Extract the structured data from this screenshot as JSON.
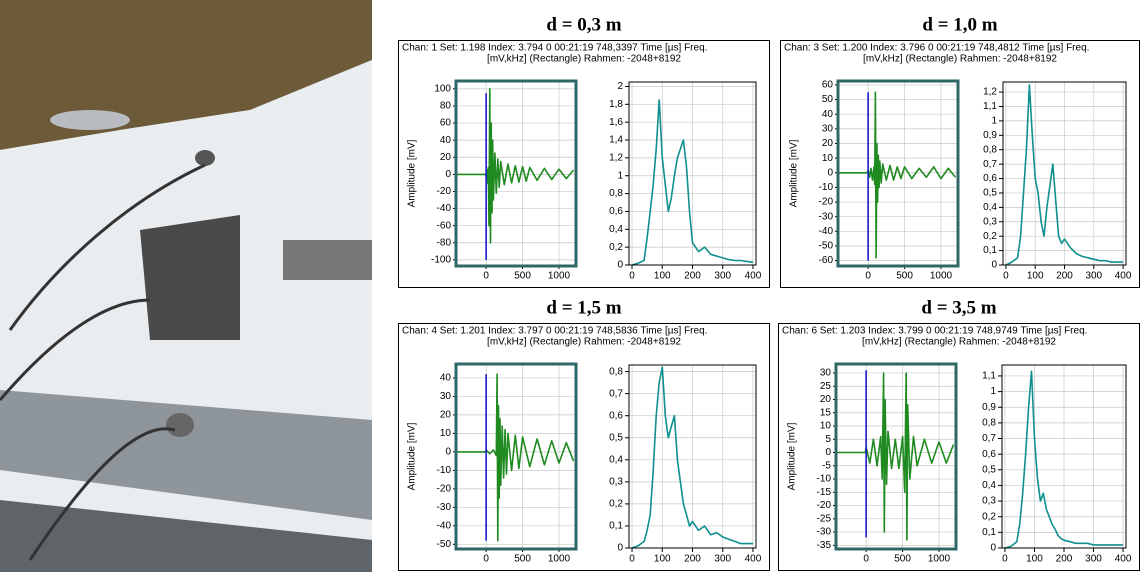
{
  "panels": [
    {
      "title": "d = 0,3 m",
      "info": "Chan: 1  Set: 1.198  Index: 3.794   0  00:21:19 748,3397   Time [µs] Freq.",
      "info2": "[mV,kHz] (Rectangle) Rahmen: -2048+8192"
    },
    {
      "title": "d = 1,0 m",
      "info": "Chan: 3  Set: 1.200  Index: 3.796   0  00:21:19 748,4812   Time [µs] Freq.",
      "info2": "[mV,kHz] (Rectangle) Rahmen: -2048+8192"
    },
    {
      "title": "d = 1,5 m",
      "info": "Chan: 4  Set: 1.201  Index: 3.797   0  00:21:19 748,5836   Time [µs] Freq.",
      "info2": "[mV,kHz] (Rectangle) Rahmen: -2048+8192"
    },
    {
      "title": "d = 3,5 m",
      "info": "Chan: 6  Set: 1.203  Index: 3.799   0  00:21:19 748,9749   Time [µs] Freq.",
      "info2": "[mV,kHz] (Rectangle) Rahmen: -2048+8192"
    }
  ],
  "chart_data": [
    {
      "type": "line",
      "ylabel": "Amplitude [mV]",
      "grid": true,
      "x": [
        -400,
        -10,
        0,
        10,
        20,
        30,
        40,
        50,
        60,
        70,
        80,
        90,
        100,
        120,
        140,
        160,
        180,
        200,
        250,
        300,
        350,
        400,
        450,
        500,
        550,
        600,
        700,
        800,
        900,
        1000,
        1100,
        1200
      ],
      "series": [
        {
          "color": "#1f8a1f",
          "values": [
            0,
            0,
            -2,
            5,
            -10,
            8,
            -60,
            100,
            -80,
            60,
            -45,
            40,
            -30,
            25,
            -22,
            18,
            -15,
            15,
            -12,
            12,
            -10,
            10,
            -9,
            9,
            -8,
            8,
            -7,
            7,
            -6,
            6,
            -5,
            5
          ]
        }
      ],
      "vlines": [
        {
          "x": 0,
          "y": [
            -100,
            95
          ],
          "color": "#1a1acc"
        }
      ],
      "xlim": [
        -400,
        1220
      ],
      "xticks": [
        0,
        500,
        1000
      ],
      "ylim": [
        -106,
        108
      ],
      "yticks": [
        -100,
        -80,
        -60,
        -40,
        -20,
        0,
        20,
        40,
        60,
        80,
        100
      ]
    },
    {
      "type": "line",
      "grid": true,
      "x": [
        0,
        20,
        40,
        50,
        60,
        70,
        80,
        90,
        100,
        110,
        120,
        130,
        140,
        150,
        160,
        170,
        180,
        190,
        200,
        220,
        240,
        260,
        280,
        300,
        320,
        340,
        360,
        380,
        400
      ],
      "series": [
        {
          "color": "#0f8f8f",
          "values": [
            0,
            0.02,
            0.05,
            0.3,
            0.6,
            0.9,
            1.3,
            1.85,
            1.2,
            0.9,
            0.6,
            0.75,
            1.0,
            1.2,
            1.3,
            1.4,
            1.1,
            0.6,
            0.25,
            0.15,
            0.2,
            0.12,
            0.1,
            0.08,
            0.06,
            0.05,
            0.05,
            0.04,
            0.03
          ]
        }
      ],
      "xlim": [
        -10,
        410
      ],
      "xticks": [
        0,
        100,
        200,
        300,
        400
      ],
      "ylim": [
        0,
        2.05
      ],
      "yticks": [
        0,
        {
          "value": 0.2,
          "label": "0,2"
        },
        {
          "value": 0.4,
          "label": "0,4"
        },
        {
          "value": 0.6,
          "label": "0,6"
        },
        {
          "value": 0.8,
          "label": "0,8"
        },
        1,
        {
          "value": 1.2,
          "label": "1,2"
        },
        {
          "value": 1.4,
          "label": "1,4"
        },
        {
          "value": 1.6,
          "label": "1,6"
        },
        {
          "value": 1.8,
          "label": "1,8"
        },
        2
      ]
    },
    {
      "type": "line",
      "ylabel": "Amplitude [mV]",
      "grid": true,
      "x": [
        -400,
        -10,
        0,
        20,
        40,
        60,
        80,
        90,
        100,
        110,
        120,
        130,
        140,
        150,
        160,
        180,
        200,
        250,
        300,
        350,
        400,
        450,
        500,
        600,
        700,
        800,
        900,
        1000,
        1100,
        1200
      ],
      "series": [
        {
          "color": "#1f8a1f",
          "values": [
            0,
            0,
            2,
            -3,
            3,
            -5,
            4,
            -8,
            55,
            -58,
            20,
            -20,
            12,
            -10,
            8,
            -7,
            6,
            -5,
            5,
            -5,
            4,
            -4,
            4,
            -4,
            3,
            -3,
            4,
            -4,
            3,
            -3
          ]
        }
      ],
      "vlines": [
        {
          "x": 0,
          "y": [
            -60,
            55
          ],
          "color": "#1a1acc"
        }
      ],
      "xlim": [
        -400,
        1220
      ],
      "xticks": [
        0,
        500,
        1000
      ],
      "ylim": [
        -63,
        62
      ],
      "yticks": [
        -60,
        -50,
        -40,
        -30,
        -20,
        -10,
        0,
        10,
        20,
        30,
        40,
        50,
        60
      ]
    },
    {
      "type": "line",
      "grid": true,
      "x": [
        0,
        20,
        40,
        50,
        60,
        70,
        80,
        90,
        100,
        110,
        120,
        130,
        140,
        150,
        160,
        170,
        180,
        190,
        200,
        220,
        240,
        260,
        280,
        300,
        320,
        340,
        360,
        380,
        400
      ],
      "series": [
        {
          "color": "#0f8f8f",
          "values": [
            0,
            0.02,
            0.05,
            0.2,
            0.5,
            0.8,
            1.25,
            0.9,
            0.6,
            0.5,
            0.3,
            0.2,
            0.4,
            0.55,
            0.7,
            0.45,
            0.2,
            0.15,
            0.18,
            0.12,
            0.08,
            0.06,
            0.05,
            0.04,
            0.03,
            0.03,
            0.02,
            0.02,
            0.02
          ]
        }
      ],
      "xlim": [
        -10,
        410
      ],
      "xticks": [
        0,
        100,
        200,
        300,
        400
      ],
      "ylim": [
        0,
        1.27
      ],
      "yticks": [
        0,
        {
          "value": 0.1,
          "label": "0,1"
        },
        {
          "value": 0.2,
          "label": "0,2"
        },
        {
          "value": 0.3,
          "label": "0,3"
        },
        {
          "value": 0.4,
          "label": "0,4"
        },
        {
          "value": 0.5,
          "label": "0,5"
        },
        {
          "value": 0.6,
          "label": "0,6"
        },
        {
          "value": 0.7,
          "label": "0,7"
        },
        {
          "value": 0.8,
          "label": "0,8"
        },
        {
          "value": 0.9,
          "label": "0,9"
        },
        1,
        {
          "value": 1.1,
          "label": "1,1"
        },
        {
          "value": 1.2,
          "label": "1,2"
        }
      ]
    },
    {
      "type": "line",
      "ylabel": "Amplitude [mV]",
      "grid": true,
      "x": [
        -400,
        -10,
        0,
        50,
        100,
        140,
        150,
        160,
        170,
        180,
        190,
        200,
        220,
        240,
        260,
        280,
        300,
        350,
        400,
        450,
        500,
        600,
        700,
        800,
        900,
        1000,
        1100,
        1200
      ],
      "series": [
        {
          "color": "#1f8a1f",
          "values": [
            0,
            0,
            1,
            -1,
            1,
            -2,
            42,
            -48,
            25,
            -25,
            18,
            -18,
            14,
            -14,
            12,
            -12,
            10,
            -10,
            9,
            -9,
            8,
            -8,
            7,
            -7,
            6,
            -6,
            5,
            -5
          ]
        }
      ],
      "vlines": [
        {
          "x": 0,
          "y": [
            -48,
            42
          ],
          "color": "#1a1acc"
        }
      ],
      "xlim": [
        -400,
        1220
      ],
      "xticks": [
        0,
        500,
        1000
      ],
      "ylim": [
        -52,
        47
      ],
      "yticks": [
        -50,
        -40,
        -30,
        -20,
        -10,
        0,
        10,
        20,
        30,
        40
      ]
    },
    {
      "type": "line",
      "grid": true,
      "x": [
        0,
        20,
        40,
        50,
        60,
        70,
        80,
        90,
        100,
        110,
        120,
        130,
        140,
        150,
        160,
        170,
        180,
        190,
        200,
        220,
        240,
        260,
        280,
        300,
        320,
        340,
        360,
        380,
        400
      ],
      "series": [
        {
          "color": "#0f8f8f",
          "values": [
            0,
            0.01,
            0.03,
            0.08,
            0.15,
            0.35,
            0.6,
            0.75,
            0.82,
            0.6,
            0.5,
            0.55,
            0.6,
            0.4,
            0.3,
            0.2,
            0.15,
            0.1,
            0.12,
            0.08,
            0.1,
            0.06,
            0.07,
            0.05,
            0.04,
            0.03,
            0.02,
            0.02,
            0.02
          ]
        }
      ],
      "xlim": [
        -10,
        410
      ],
      "xticks": [
        0,
        100,
        200,
        300,
        400
      ],
      "ylim": [
        0,
        0.83
      ],
      "yticks": [
        0,
        {
          "value": 0.1,
          "label": "0,1"
        },
        {
          "value": 0.2,
          "label": "0,2"
        },
        {
          "value": 0.3,
          "label": "0,3"
        },
        {
          "value": 0.4,
          "label": "0,4"
        },
        {
          "value": 0.5,
          "label": "0,5"
        },
        {
          "value": 0.6,
          "label": "0,6"
        },
        {
          "value": 0.7,
          "label": "0,7"
        },
        {
          "value": 0.8,
          "label": "0,8"
        }
      ]
    },
    {
      "type": "line",
      "ylabel": "Amplitude [mV]",
      "grid": true,
      "x": [
        -400,
        -10,
        0,
        50,
        100,
        150,
        200,
        220,
        240,
        250,
        260,
        280,
        300,
        350,
        400,
        450,
        500,
        530,
        550,
        560,
        570,
        600,
        650,
        700,
        800,
        900,
        1000,
        1100,
        1200
      ],
      "series": [
        {
          "color": "#1f8a1f",
          "values": [
            0,
            0,
            2,
            -4,
            5,
            -5,
            6,
            -10,
            30,
            -30,
            20,
            -12,
            8,
            -6,
            5,
            -6,
            6,
            -15,
            30,
            -33,
            18,
            -10,
            6,
            -5,
            5,
            -4,
            4,
            -4,
            3
          ]
        }
      ],
      "vlines": [
        {
          "x": 0,
          "y": [
            -32,
            31
          ],
          "color": "#1a1acc"
        }
      ],
      "xlim": [
        -400,
        1220
      ],
      "xticks": [
        0,
        500,
        1000
      ],
      "ylim": [
        -36,
        33
      ],
      "yticks": [
        -35,
        -30,
        -25,
        -20,
        -15,
        -10,
        -5,
        0,
        5,
        10,
        15,
        20,
        25,
        30
      ]
    },
    {
      "type": "line",
      "grid": true,
      "x": [
        0,
        20,
        40,
        50,
        60,
        70,
        80,
        90,
        100,
        110,
        120,
        130,
        140,
        150,
        160,
        170,
        180,
        190,
        200,
        220,
        240,
        260,
        280,
        300,
        320,
        340,
        360,
        380,
        400
      ],
      "series": [
        {
          "color": "#0f8f8f",
          "values": [
            0,
            0.01,
            0.04,
            0.15,
            0.35,
            0.6,
            0.9,
            1.13,
            0.7,
            0.45,
            0.3,
            0.35,
            0.25,
            0.2,
            0.15,
            0.12,
            0.08,
            0.06,
            0.05,
            0.04,
            0.03,
            0.03,
            0.03,
            0.02,
            0.02,
            0.02,
            0.02,
            0.02,
            0.02
          ]
        }
      ],
      "xlim": [
        -10,
        410
      ],
      "xticks": [
        0,
        100,
        200,
        300,
        400
      ],
      "ylim": [
        0,
        1.17
      ],
      "yticks": [
        0,
        {
          "value": 0.1,
          "label": "0,1"
        },
        {
          "value": 0.2,
          "label": "0,2"
        },
        {
          "value": 0.3,
          "label": "0,3"
        },
        {
          "value": 0.4,
          "label": "0,4"
        },
        {
          "value": 0.5,
          "label": "0,5"
        },
        {
          "value": 0.6,
          "label": "0,6"
        },
        {
          "value": 0.7,
          "label": "0,7"
        },
        {
          "value": 0.8,
          "label": "0,8"
        },
        {
          "value": 0.9,
          "label": "0,9"
        },
        1,
        {
          "value": 1.1,
          "label": "1,1"
        }
      ]
    }
  ]
}
